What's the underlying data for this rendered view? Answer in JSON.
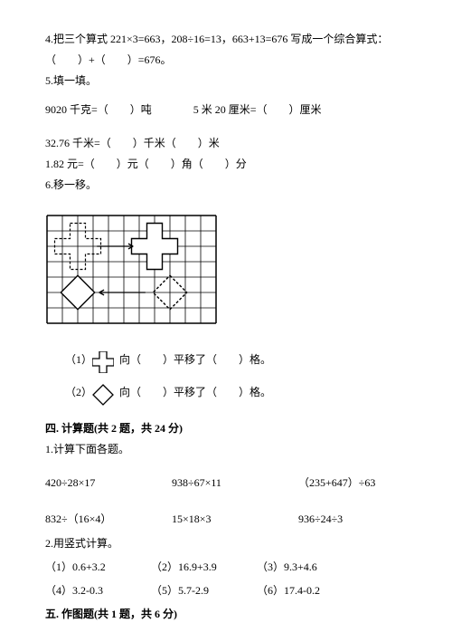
{
  "q4": {
    "num": "4.",
    "text": "把三个算式 221×3=663，208÷16=13，663+13=676 写成一个综合算式：",
    "line2": "（　　）+（　　）=676。"
  },
  "q5": {
    "num": "5.",
    "text": "填一填。",
    "l1a": "9020 千克=（　　）吨",
    "l1b": "5 米 20 厘米=（　　）厘米",
    "l2": "32.76 千米=（　　）千米（　　）米",
    "l3": "1.82 元=（　　）元（　　）角（　　）分"
  },
  "q6": {
    "num": "6.",
    "text": "移一移。"
  },
  "grid": {
    "cols": 11,
    "rows": 7,
    "cell": 17,
    "border_color": "#000000",
    "bg": "#ffffff",
    "dashed_plus_origin": [
      1.5,
      1.5
    ],
    "solid_plus_origin": [
      6.5,
      1.5
    ],
    "solid_diamond_center": [
      2,
      5
    ],
    "dashed_diamond_center": [
      8,
      5
    ],
    "arrow1_from": [
      3.25,
      2
    ],
    "arrow1_to": [
      5.6,
      2
    ],
    "arrow2_from": [
      6.4,
      5
    ],
    "arrow2_to": [
      3.4,
      5
    ]
  },
  "subq": {
    "s1": "（1）　　　向（　　）平移了（　　）格。",
    "s2": "（2）　　　向（　　）平移了（　　）格。"
  },
  "sec4": {
    "title": "四. 计算题(共 2 题，共 24 分)",
    "q1": "1.计算下面各题。",
    "row1": [
      "420÷28×17",
      "938÷67×11",
      "（235+647）÷63"
    ],
    "row2": [
      "832÷（16×4）",
      "15×18×3",
      "936÷24÷3"
    ],
    "q2": "2.用竖式计算。",
    "r1": [
      "（1）0.6+3.2",
      "（2）16.9+3.9",
      "（3）9.3+4.6"
    ],
    "r2": [
      "（4）3.2-0.3",
      "（5）5.7-2.9",
      "（6）17.4-0.2"
    ]
  },
  "sec5": {
    "title": "五. 作图题(共 1 题，共 6 分)"
  },
  "shapes": {
    "plus_size": 24,
    "diamond_size": 24,
    "stroke": "#000000"
  }
}
